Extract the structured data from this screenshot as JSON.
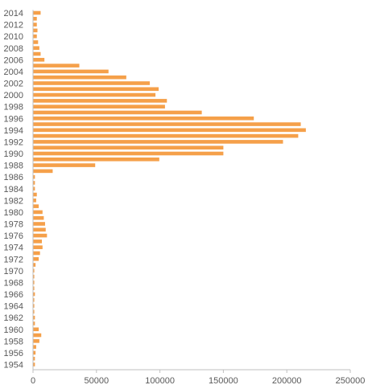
{
  "chart_data": {
    "type": "bar",
    "orientation": "horizontal",
    "title": "",
    "xlabel": "",
    "ylabel": "",
    "bar_color": "#f5a04a",
    "axis_color": "#bfbfbf",
    "text_color": "#595959",
    "grid": false,
    "legend": "none",
    "xlim": [
      0,
      250000
    ],
    "x_ticks": [
      0,
      50000,
      100000,
      150000,
      200000,
      250000
    ],
    "x_tick_labels": [
      "0",
      "50000",
      "100000",
      "150000",
      "200000",
      "250000"
    ],
    "categories": [
      1954,
      1955,
      1956,
      1957,
      1958,
      1959,
      1960,
      1961,
      1962,
      1963,
      1964,
      1965,
      1966,
      1967,
      1968,
      1969,
      1970,
      1971,
      1972,
      1973,
      1974,
      1975,
      1976,
      1977,
      1978,
      1979,
      1980,
      1981,
      1982,
      1983,
      1984,
      1985,
      1986,
      1987,
      1988,
      1989,
      1990,
      1991,
      1992,
      1993,
      1994,
      1995,
      1996,
      1997,
      1998,
      1999,
      2000,
      2001,
      2002,
      2003,
      2004,
      2005,
      2006,
      2007,
      2008,
      2009,
      2010,
      2011,
      2012,
      2013,
      2014
    ],
    "category_labels": [
      "1954",
      "",
      "1956",
      "",
      "1958",
      "",
      "1960",
      "",
      "1962",
      "",
      "1964",
      "",
      "1966",
      "",
      "1968",
      "",
      "1970",
      "",
      "1972",
      "",
      "1974",
      "",
      "1976",
      "",
      "1978",
      "",
      "1980",
      "",
      "1982",
      "",
      "1984",
      "",
      "1986",
      "",
      "1988",
      "",
      "1990",
      "",
      "1992",
      "",
      "1994",
      "",
      "1996",
      "",
      "1998",
      "",
      "2000",
      "",
      "2002",
      "",
      "2004",
      "",
      "2006",
      "",
      "2008",
      "",
      "2010",
      "",
      "2012",
      "",
      "2014"
    ],
    "values": [
      1500,
      1500,
      2000,
      2500,
      5000,
      6500,
      4500,
      1500,
      1500,
      1000,
      1000,
      1000,
      1500,
      1000,
      1000,
      1000,
      1000,
      2000,
      4500,
      5500,
      7500,
      7000,
      11000,
      10000,
      9500,
      8500,
      7500,
      4500,
      2500,
      3000,
      1500,
      1500,
      1500,
      15500,
      49000,
      99500,
      150000,
      150000,
      197000,
      209000,
      215000,
      211000,
      174000,
      133000,
      104000,
      105500,
      96500,
      99000,
      92000,
      73500,
      59500,
      36500,
      9000,
      6000,
      5000,
      4000,
      3000,
      3500,
      3000,
      3000,
      6000
    ]
  }
}
